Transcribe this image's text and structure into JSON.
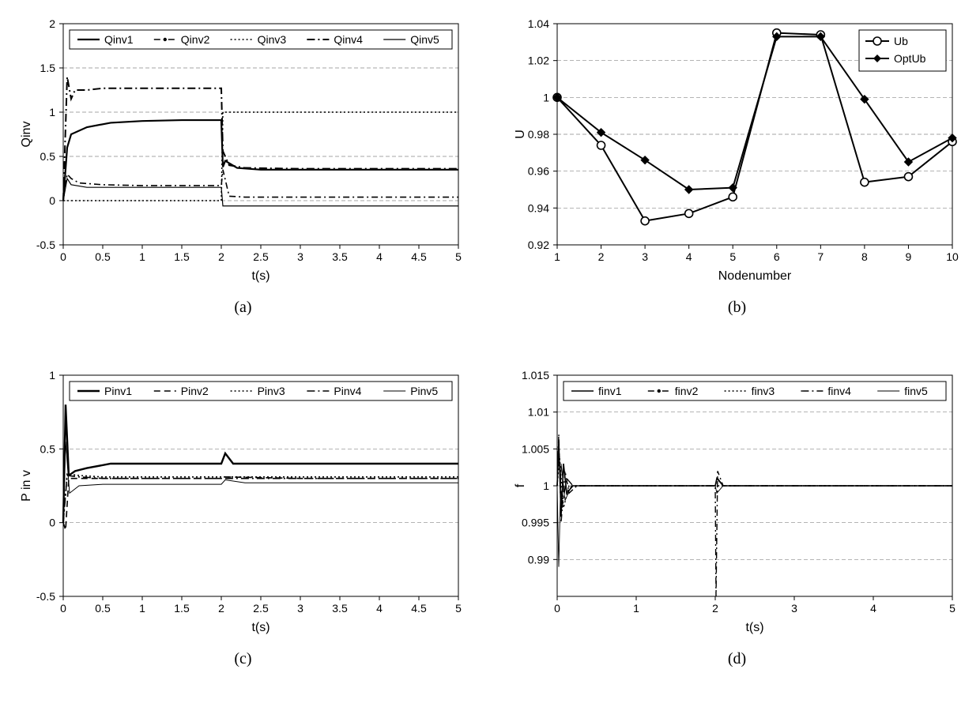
{
  "layout": {
    "panels": [
      "a",
      "b",
      "c",
      "d"
    ],
    "sublabels": {
      "a": "(a)",
      "b": "(b)",
      "c": "(c)",
      "d": "(d)"
    }
  },
  "colors": {
    "background": "#ffffff",
    "axis": "#000000",
    "grid": "#888888",
    "series": "#000000"
  },
  "fonts": {
    "tick_size": 14,
    "axis_label_size": 16,
    "sublabel_size": 20,
    "legend_size": 14,
    "family": "Arial"
  },
  "panel_a": {
    "type": "line",
    "xlabel": "t(s)",
    "ylabel": "Qinv",
    "xlim": [
      0,
      5
    ],
    "ylim": [
      -0.5,
      2
    ],
    "xticks": [
      0,
      0.5,
      1,
      1.5,
      2,
      2.5,
      3,
      3.5,
      4,
      4.5,
      5
    ],
    "yticks": [
      -0.5,
      0,
      0.5,
      1,
      1.5,
      2
    ],
    "legend": {
      "items": [
        "Qinv1",
        "Qinv2",
        "Qinv3",
        "Qinv4",
        "Qinv5"
      ],
      "position": "top-inside"
    },
    "series": [
      {
        "name": "Qinv1",
        "style": "solid",
        "width": 2.2,
        "data": [
          [
            0,
            0
          ],
          [
            0.05,
            0.6
          ],
          [
            0.1,
            0.75
          ],
          [
            0.3,
            0.83
          ],
          [
            0.6,
            0.88
          ],
          [
            1.0,
            0.9
          ],
          [
            1.5,
            0.91
          ],
          [
            2.0,
            0.91
          ],
          [
            2.02,
            0.38
          ],
          [
            2.05,
            0.45
          ],
          [
            2.2,
            0.37
          ],
          [
            2.5,
            0.35
          ],
          [
            3.0,
            0.35
          ],
          [
            4.0,
            0.35
          ],
          [
            5.0,
            0.35
          ]
        ]
      },
      {
        "name": "Qinv2",
        "style": "dash-dot-marker",
        "width": 1.6,
        "data": [
          [
            0,
            0
          ],
          [
            0.05,
            0.3
          ],
          [
            0.1,
            0.25
          ],
          [
            0.2,
            0.2
          ],
          [
            0.5,
            0.18
          ],
          [
            1.0,
            0.17
          ],
          [
            1.5,
            0.17
          ],
          [
            2.0,
            0.17
          ],
          [
            2.02,
            0.35
          ],
          [
            2.1,
            0.05
          ],
          [
            2.3,
            0.04
          ],
          [
            3.0,
            0.04
          ],
          [
            4.0,
            0.04
          ],
          [
            5.0,
            0.04
          ]
        ]
      },
      {
        "name": "Qinv3",
        "style": "dotted",
        "width": 1.6,
        "data": [
          [
            0,
            0
          ],
          [
            0.05,
            0.0
          ],
          [
            0.5,
            0.0
          ],
          [
            1.0,
            0.0
          ],
          [
            1.5,
            0.0
          ],
          [
            2.0,
            0.0
          ],
          [
            2.02,
            1.0
          ],
          [
            2.1,
            1.0
          ],
          [
            3.0,
            1.0
          ],
          [
            4.0,
            1.0
          ],
          [
            5.0,
            1.0
          ]
        ]
      },
      {
        "name": "Qinv4",
        "style": "dash-dot",
        "width": 2.0,
        "data": [
          [
            0,
            0
          ],
          [
            0.05,
            1.4
          ],
          [
            0.1,
            1.15
          ],
          [
            0.15,
            1.25
          ],
          [
            0.3,
            1.25
          ],
          [
            0.5,
            1.27
          ],
          [
            1.0,
            1.27
          ],
          [
            1.5,
            1.27
          ],
          [
            2.0,
            1.27
          ],
          [
            2.02,
            0.56
          ],
          [
            2.1,
            0.4
          ],
          [
            2.3,
            0.37
          ],
          [
            3.0,
            0.36
          ],
          [
            4.0,
            0.36
          ],
          [
            5.0,
            0.36
          ]
        ]
      },
      {
        "name": "Qinv5",
        "style": "solid-thin",
        "width": 1.2,
        "data": [
          [
            0,
            0
          ],
          [
            0.05,
            0.25
          ],
          [
            0.1,
            0.18
          ],
          [
            0.3,
            0.15
          ],
          [
            0.6,
            0.15
          ],
          [
            1.0,
            0.15
          ],
          [
            1.5,
            0.15
          ],
          [
            2.0,
            0.15
          ],
          [
            2.02,
            -0.06
          ],
          [
            2.3,
            -0.06
          ],
          [
            3.0,
            -0.06
          ],
          [
            4.0,
            -0.06
          ],
          [
            5.0,
            -0.06
          ]
        ]
      }
    ]
  },
  "panel_b": {
    "type": "line-markers",
    "xlabel": "Nodenumber",
    "ylabel": "U",
    "xlim": [
      1,
      10
    ],
    "ylim": [
      0.92,
      1.04
    ],
    "xticks": [
      1,
      2,
      3,
      4,
      5,
      6,
      7,
      8,
      9,
      10
    ],
    "yticks": [
      0.92,
      0.94,
      0.96,
      0.98,
      1,
      1.02,
      1.04
    ],
    "legend": {
      "items": [
        "Ub",
        "OptUb"
      ],
      "position": "top-right"
    },
    "series": [
      {
        "name": "Ub",
        "marker": "circle",
        "width": 2.0,
        "data": [
          [
            1,
            1.0
          ],
          [
            2,
            0.974
          ],
          [
            3,
            0.933
          ],
          [
            4,
            0.937
          ],
          [
            5,
            0.946
          ],
          [
            6,
            1.035
          ],
          [
            7,
            1.034
          ],
          [
            8,
            0.954
          ],
          [
            9,
            0.957
          ],
          [
            10,
            0.976
          ]
        ]
      },
      {
        "name": "OptUb",
        "marker": "diamond",
        "width": 2.0,
        "data": [
          [
            1,
            1.0
          ],
          [
            2,
            0.981
          ],
          [
            3,
            0.966
          ],
          [
            4,
            0.95
          ],
          [
            5,
            0.951
          ],
          [
            6,
            1.033
          ],
          [
            7,
            1.033
          ],
          [
            8,
            0.999
          ],
          [
            9,
            0.965
          ],
          [
            10,
            0.978
          ]
        ]
      }
    ]
  },
  "panel_c": {
    "type": "line",
    "xlabel": "t(s)",
    "ylabel": "P in v",
    "xlim": [
      0,
      5
    ],
    "ylim": [
      -0.5,
      1
    ],
    "xticks": [
      0,
      0.5,
      1,
      1.5,
      2,
      2.5,
      3,
      3.5,
      4,
      4.5,
      5
    ],
    "yticks": [
      -0.5,
      0,
      0.5,
      1
    ],
    "legend": {
      "items": [
        "Pinv1",
        "Pinv2",
        "Pinv3",
        "Pinv4",
        "Pinv5"
      ],
      "position": "top-inside"
    },
    "series": [
      {
        "name": "Pinv1",
        "style": "solid",
        "width": 2.4,
        "data": [
          [
            0,
            0
          ],
          [
            0.03,
            0.8
          ],
          [
            0.07,
            0.32
          ],
          [
            0.15,
            0.35
          ],
          [
            0.3,
            0.37
          ],
          [
            0.6,
            0.4
          ],
          [
            1.0,
            0.4
          ],
          [
            1.5,
            0.4
          ],
          [
            2.0,
            0.4
          ],
          [
            2.05,
            0.47
          ],
          [
            2.15,
            0.4
          ],
          [
            2.5,
            0.4
          ],
          [
            3.0,
            0.4
          ],
          [
            4.0,
            0.4
          ],
          [
            5.0,
            0.4
          ]
        ]
      },
      {
        "name": "Pinv2",
        "style": "dashed",
        "width": 1.6,
        "data": [
          [
            0,
            0
          ],
          [
            0.03,
            -0.05
          ],
          [
            0.07,
            0.3
          ],
          [
            0.15,
            0.3
          ],
          [
            0.5,
            0.3
          ],
          [
            1.0,
            0.3
          ],
          [
            2.0,
            0.3
          ],
          [
            2.05,
            0.31
          ],
          [
            3.0,
            0.3
          ],
          [
            5.0,
            0.3
          ]
        ]
      },
      {
        "name": "Pinv3",
        "style": "dotted",
        "width": 1.6,
        "data": [
          [
            0,
            0
          ],
          [
            0.05,
            0.33
          ],
          [
            0.2,
            0.32
          ],
          [
            0.5,
            0.31
          ],
          [
            1.0,
            0.31
          ],
          [
            2.0,
            0.31
          ],
          [
            3.0,
            0.31
          ],
          [
            5.0,
            0.31
          ]
        ]
      },
      {
        "name": "Pinv4",
        "style": "dash-dot",
        "width": 1.6,
        "data": [
          [
            0,
            0
          ],
          [
            0.05,
            0.32
          ],
          [
            0.2,
            0.31
          ],
          [
            0.5,
            0.3
          ],
          [
            1.5,
            0.3
          ],
          [
            2.0,
            0.3
          ],
          [
            3.0,
            0.3
          ],
          [
            5.0,
            0.3
          ]
        ]
      },
      {
        "name": "Pinv5",
        "style": "solid-thin",
        "width": 1.0,
        "data": [
          [
            0,
            0
          ],
          [
            0.03,
            0.55
          ],
          [
            0.08,
            0.2
          ],
          [
            0.2,
            0.25
          ],
          [
            0.5,
            0.26
          ],
          [
            1.0,
            0.26
          ],
          [
            1.5,
            0.26
          ],
          [
            2.0,
            0.26
          ],
          [
            2.05,
            0.29
          ],
          [
            2.3,
            0.27
          ],
          [
            3.0,
            0.27
          ],
          [
            5.0,
            0.27
          ]
        ]
      }
    ]
  },
  "panel_d": {
    "type": "line",
    "xlabel": "t(s)",
    "ylabel": "f",
    "xlim": [
      0,
      5
    ],
    "ylim": [
      0.985,
      1.015
    ],
    "xticks": [
      0,
      1,
      2,
      3,
      4,
      5
    ],
    "yticks": [
      0.99,
      0.995,
      1,
      1.005,
      1.01,
      1.015
    ],
    "legend": {
      "items": [
        "finv1",
        "finv2",
        "finv3",
        "finv4",
        "finv5"
      ],
      "position": "top-inside"
    },
    "series": [
      {
        "name": "finv1",
        "style": "solid",
        "width": 1.6,
        "data": [
          [
            0,
            1.0
          ],
          [
            0.02,
            1.006
          ],
          [
            0.05,
            0.996
          ],
          [
            0.08,
            1.003
          ],
          [
            0.12,
            0.999
          ],
          [
            0.2,
            1.0
          ],
          [
            0.5,
            1.0
          ],
          [
            1.0,
            1.0
          ],
          [
            2.0,
            1.0
          ],
          [
            2.02,
            1.001
          ],
          [
            2.1,
            1.0
          ],
          [
            3.0,
            1.0
          ],
          [
            5.0,
            1.0
          ]
        ]
      },
      {
        "name": "finv2",
        "style": "dash-dot-marker",
        "width": 1.4,
        "data": [
          [
            0,
            1.0
          ],
          [
            0.02,
            1.007
          ],
          [
            0.05,
            0.995
          ],
          [
            0.1,
            1.002
          ],
          [
            0.15,
            0.999
          ],
          [
            0.25,
            1.0
          ],
          [
            1.0,
            1.0
          ],
          [
            2.0,
            1.0
          ],
          [
            2.01,
            0.985
          ],
          [
            2.03,
            1.002
          ],
          [
            2.1,
            1.0
          ],
          [
            3.0,
            1.0
          ],
          [
            5.0,
            1.0
          ]
        ]
      },
      {
        "name": "finv3",
        "style": "dotted",
        "width": 1.4,
        "data": [
          [
            0,
            1.0
          ],
          [
            0.03,
            1.004
          ],
          [
            0.08,
            0.997
          ],
          [
            0.15,
            1.0
          ],
          [
            1.0,
            1.0
          ],
          [
            2.0,
            1.0
          ],
          [
            2.05,
            1.0
          ],
          [
            3.0,
            1.0
          ],
          [
            5.0,
            1.0
          ]
        ]
      },
      {
        "name": "finv4",
        "style": "dash-dot",
        "width": 1.4,
        "data": [
          [
            0,
            1.0
          ],
          [
            0.02,
            1.005
          ],
          [
            0.06,
            0.997
          ],
          [
            0.12,
            1.001
          ],
          [
            0.2,
            1.0
          ],
          [
            1.0,
            1.0
          ],
          [
            2.0,
            1.0
          ],
          [
            2.03,
            1.001
          ],
          [
            2.1,
            1.0
          ],
          [
            3.0,
            1.0
          ],
          [
            5.0,
            1.0
          ]
        ]
      },
      {
        "name": "finv5",
        "style": "solid-thin",
        "width": 0.9,
        "data": [
          [
            0,
            1.0
          ],
          [
            0.02,
            0.989
          ],
          [
            0.05,
            1.003
          ],
          [
            0.1,
            0.998
          ],
          [
            0.18,
            1.0
          ],
          [
            1.0,
            1.0
          ],
          [
            2.0,
            1.0
          ],
          [
            2.02,
            0.999
          ],
          [
            2.1,
            1.0
          ],
          [
            3.0,
            1.0
          ],
          [
            4.0,
            1.0
          ],
          [
            5.0,
            1.0
          ]
        ]
      }
    ]
  }
}
